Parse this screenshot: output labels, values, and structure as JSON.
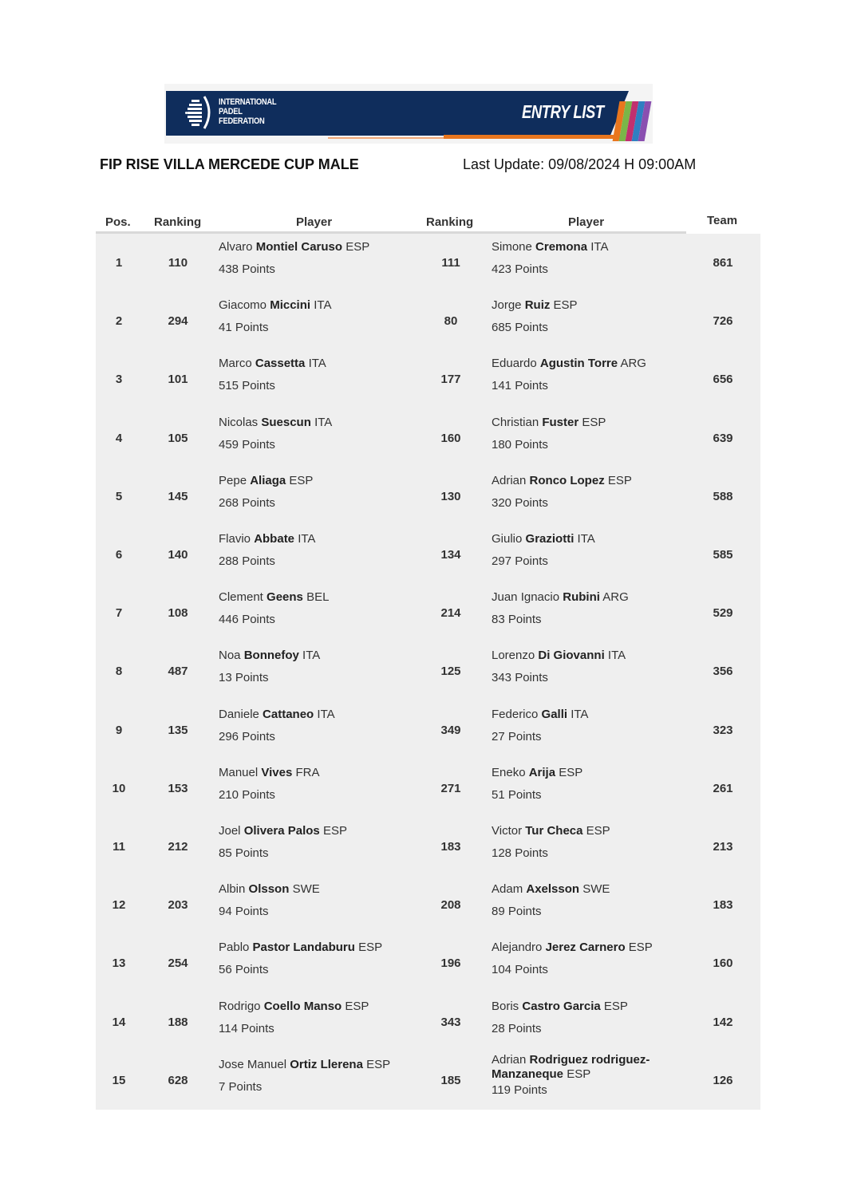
{
  "banner": {
    "logo_text": [
      "INTERNATIONAL",
      "PADEL",
      "FEDERATION"
    ],
    "label": "ENTRY LIST",
    "stripe_colors": [
      "#e8761e",
      "#7ab648",
      "#c1306e",
      "#2f7fc1",
      "#8a4fb0"
    ]
  },
  "document": {
    "title": "FIP RISE VILLA MERCEDE CUP MALE",
    "last_update": "Last Update: 09/08/2024 H 09:00AM"
  },
  "table": {
    "headers": {
      "pos": "Pos.",
      "ranking1": "Ranking",
      "player1": "Player",
      "ranking2": "Ranking",
      "player2": "Player",
      "team": "Team"
    },
    "rows": [
      {
        "pos": "1",
        "r1": "110",
        "p1": {
          "first": "Alvaro",
          "last": "Montiel Caruso",
          "country": "ESP",
          "points": "438 Points"
        },
        "r2": "111",
        "p2": {
          "first": "Simone",
          "last": "Cremona",
          "country": "ITA",
          "points": "423 Points"
        },
        "team": "861"
      },
      {
        "pos": "2",
        "r1": "294",
        "p1": {
          "first": "Giacomo",
          "last": "Miccini",
          "country": "ITA",
          "points": "41 Points"
        },
        "r2": "80",
        "p2": {
          "first": "Jorge",
          "last": "Ruiz",
          "country": "ESP",
          "points": "685 Points"
        },
        "team": "726"
      },
      {
        "pos": "3",
        "r1": "101",
        "p1": {
          "first": "Marco",
          "last": "Cassetta",
          "country": "ITA",
          "points": "515 Points"
        },
        "r2": "177",
        "p2": {
          "first": "Eduardo",
          "last": "Agustin Torre",
          "country": "ARG",
          "points": "141 Points"
        },
        "team": "656"
      },
      {
        "pos": "4",
        "r1": "105",
        "p1": {
          "first": "Nicolas",
          "last": "Suescun",
          "country": "ITA",
          "points": "459 Points"
        },
        "r2": "160",
        "p2": {
          "first": "Christian",
          "last": "Fuster",
          "country": "ESP",
          "points": "180 Points"
        },
        "team": "639"
      },
      {
        "pos": "5",
        "r1": "145",
        "p1": {
          "first": "Pepe",
          "last": "Aliaga",
          "country": "ESP",
          "points": "268 Points"
        },
        "r2": "130",
        "p2": {
          "first": "Adrian",
          "last": "Ronco Lopez",
          "country": "ESP",
          "points": "320 Points"
        },
        "team": "588"
      },
      {
        "pos": "6",
        "r1": "140",
        "p1": {
          "first": "Flavio",
          "last": "Abbate",
          "country": "ITA",
          "points": "288 Points"
        },
        "r2": "134",
        "p2": {
          "first": "Giulio",
          "last": "Graziotti",
          "country": "ITA",
          "points": "297 Points"
        },
        "team": "585"
      },
      {
        "pos": "7",
        "r1": "108",
        "p1": {
          "first": "Clement",
          "last": "Geens",
          "country": "BEL",
          "points": "446 Points"
        },
        "r2": "214",
        "p2": {
          "first": "Juan Ignacio",
          "last": "Rubini",
          "country": "ARG",
          "points": "83 Points"
        },
        "team": "529"
      },
      {
        "pos": "8",
        "r1": "487",
        "p1": {
          "first": "Noa",
          "last": "Bonnefoy",
          "country": "ITA",
          "points": "13 Points"
        },
        "r2": "125",
        "p2": {
          "first": "Lorenzo",
          "last": "Di Giovanni",
          "country": "ITA",
          "points": "343 Points"
        },
        "team": "356"
      },
      {
        "pos": "9",
        "r1": "135",
        "p1": {
          "first": "Daniele",
          "last": "Cattaneo",
          "country": "ITA",
          "points": "296 Points"
        },
        "r2": "349",
        "p2": {
          "first": "Federico",
          "last": "Galli",
          "country": "ITA",
          "points": "27 Points"
        },
        "team": "323"
      },
      {
        "pos": "10",
        "r1": "153",
        "p1": {
          "first": "Manuel",
          "last": "Vives",
          "country": "FRA",
          "points": "210 Points"
        },
        "r2": "271",
        "p2": {
          "first": "Eneko",
          "last": "Arija",
          "country": "ESP",
          "points": "51 Points"
        },
        "team": "261"
      },
      {
        "pos": "11",
        "r1": "212",
        "p1": {
          "first": "Joel",
          "last": "Olivera Palos",
          "country": "ESP",
          "points": "85 Points"
        },
        "r2": "183",
        "p2": {
          "first": "Victor",
          "last": "Tur Checa",
          "country": "ESP",
          "points": "128 Points"
        },
        "team": "213"
      },
      {
        "pos": "12",
        "r1": "203",
        "p1": {
          "first": "Albin",
          "last": "Olsson",
          "country": "SWE",
          "points": "94 Points"
        },
        "r2": "208",
        "p2": {
          "first": "Adam",
          "last": "Axelsson",
          "country": "SWE",
          "points": "89 Points"
        },
        "team": "183"
      },
      {
        "pos": "13",
        "r1": "254",
        "p1": {
          "first": "Pablo",
          "last": "Pastor Landaburu",
          "country": "ESP",
          "points": "56 Points"
        },
        "r2": "196",
        "p2": {
          "first": "Alejandro",
          "last": "Jerez Carnero",
          "country": "ESP",
          "points": "104 Points"
        },
        "team": "160"
      },
      {
        "pos": "14",
        "r1": "188",
        "p1": {
          "first": "Rodrigo",
          "last": "Coello Manso",
          "country": "ESP",
          "points": "114 Points"
        },
        "r2": "343",
        "p2": {
          "first": "Boris",
          "last": "Castro Garcia",
          "country": "ESP",
          "points": "28 Points"
        },
        "team": "142"
      },
      {
        "pos": "15",
        "r1": "628",
        "p1": {
          "first": "Jose Manuel",
          "last": "Ortiz Llerena",
          "country": "ESP",
          "points": "7 Points"
        },
        "r2": "185",
        "p2": {
          "first": "Adrian",
          "last": "Rodriguez rodriguez-Manzaneque",
          "country": "ESP",
          "points": "119 Points"
        },
        "team": "126"
      }
    ]
  }
}
